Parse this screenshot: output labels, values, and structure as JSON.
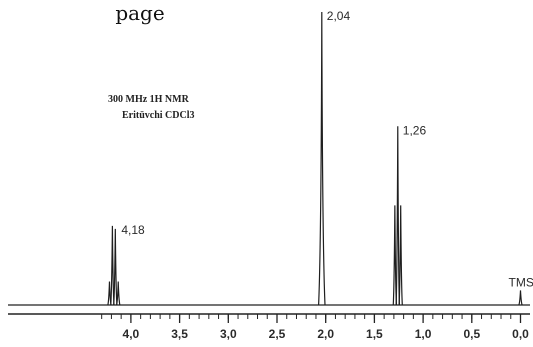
{
  "header_fragment": "page",
  "chart_data": {
    "type": "line",
    "title": "",
    "annotations": [
      "300 MHz 1H NMR",
      "Eritüvchi  CDCl3"
    ],
    "xlabel": "",
    "ylabel": "",
    "x_reversed": true,
    "xlim": [
      4.3,
      0.0
    ],
    "x_ticks": [
      "4,0",
      "3,5",
      "3,0",
      "2,5",
      "2,0",
      "1,5",
      "1,0",
      "0,5",
      "0,0"
    ],
    "x_tick_values": [
      4.0,
      3.5,
      3.0,
      2.5,
      2.0,
      1.5,
      1.0,
      0.5,
      0.0
    ],
    "grid": false,
    "peaks": [
      {
        "label": "4,18",
        "shift": 4.18,
        "intensity": 0.27,
        "multiplet": [
          4.22,
          4.19,
          4.16,
          4.13
        ],
        "sub_intensities": [
          0.08,
          0.27,
          0.26,
          0.08
        ]
      },
      {
        "label": "2,04",
        "shift": 2.04,
        "intensity": 1.0,
        "multiplet": [
          2.04
        ],
        "sub_intensities": [
          1.0
        ]
      },
      {
        "label": "1,26",
        "shift": 1.26,
        "intensity": 0.61,
        "multiplet": [
          1.29,
          1.26,
          1.23
        ],
        "sub_intensities": [
          0.34,
          0.61,
          0.34
        ]
      },
      {
        "label": "TMS",
        "shift": 0.0,
        "intensity": 0.05,
        "multiplet": [
          0.0
        ],
        "sub_intensities": [
          0.05
        ]
      }
    ]
  }
}
